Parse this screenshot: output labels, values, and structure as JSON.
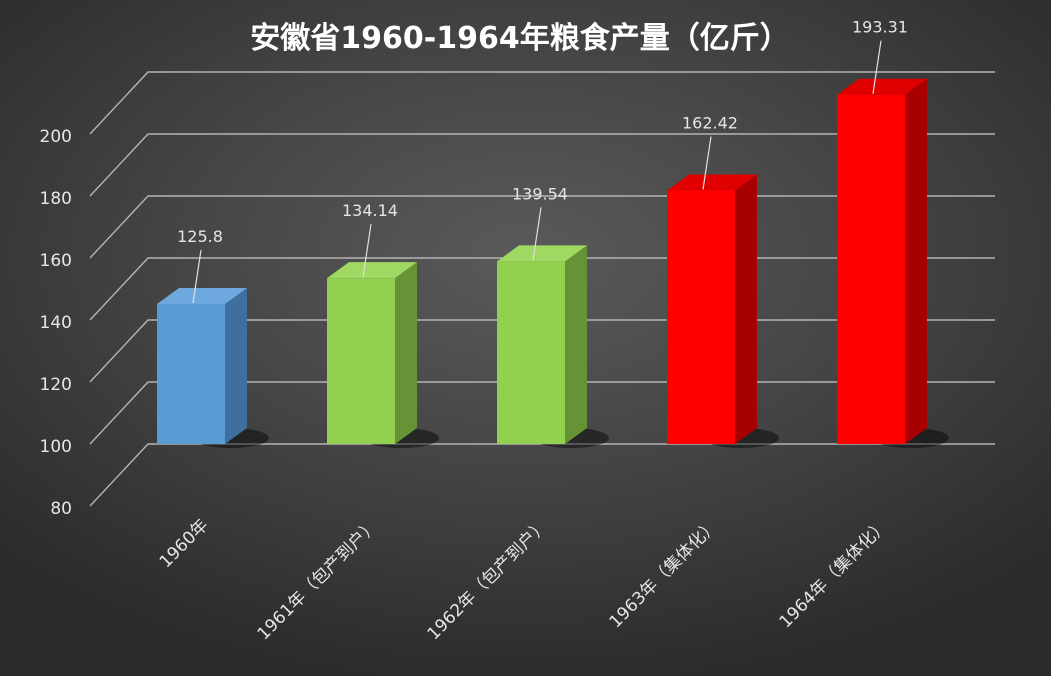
{
  "chart_data": {
    "type": "bar",
    "title": "安徽省1960-1964年粮食产量（亿斤）",
    "xlabel": "",
    "ylabel": "",
    "ylim": [
      80,
      200
    ],
    "yticks": [
      80,
      100,
      120,
      140,
      160,
      180,
      200
    ],
    "grid": true,
    "legend": "none",
    "categories": [
      "1960年",
      "1961年（包产到户）",
      "1962年（包产到户）",
      "1963年（集体化）",
      "1964年（集体化）"
    ],
    "values": [
      125.8,
      134.14,
      139.54,
      162.42,
      193.31
    ],
    "value_labels": [
      "125.8",
      "134.14",
      "139.54",
      "162.42",
      "193.31"
    ],
    "colors": {
      "bars": [
        "#5b9bd5",
        "#92d050",
        "#92d050",
        "#ff0000",
        "#ff0000"
      ],
      "tops": [
        "#6da8df",
        "#9fd862",
        "#9fd862",
        "#e00000",
        "#e00000"
      ],
      "sides": [
        "#3f6f9f",
        "#679337",
        "#679337",
        "#a80000",
        "#a80000"
      ],
      "grid": "#b4b4b4",
      "text": "#e6e6e6",
      "title": "#ffffff"
    }
  }
}
